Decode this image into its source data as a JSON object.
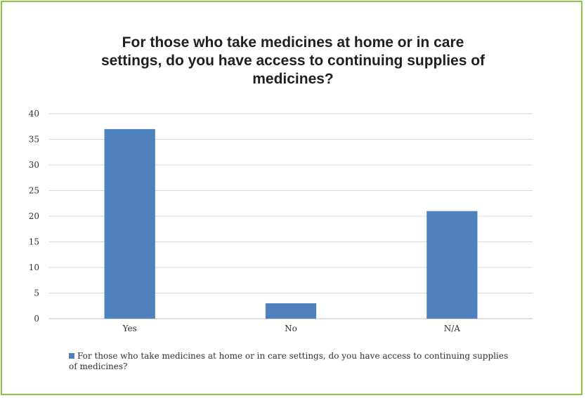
{
  "colors": {
    "border": "#8cc63f",
    "bar": "#4f81bd",
    "grid": "#d9d9d9",
    "axis": "#bfbfbf"
  },
  "chart_data": {
    "type": "bar",
    "title": "For those who take medicines at home or in care\nsettings, do you have access to continuing supplies of\nmedicines?",
    "categories": [
      "Yes",
      "No",
      "N/A"
    ],
    "series": [
      {
        "name": "For those who take medicines at home or in care settings, do you have access to continuing supplies of medicines?",
        "values": [
          37,
          3,
          21
        ]
      }
    ],
    "ylim": [
      0,
      40
    ],
    "yticks": [
      0,
      5,
      10,
      15,
      20,
      25,
      30,
      35,
      40
    ],
    "grid": true,
    "legend_position": "bottom"
  }
}
